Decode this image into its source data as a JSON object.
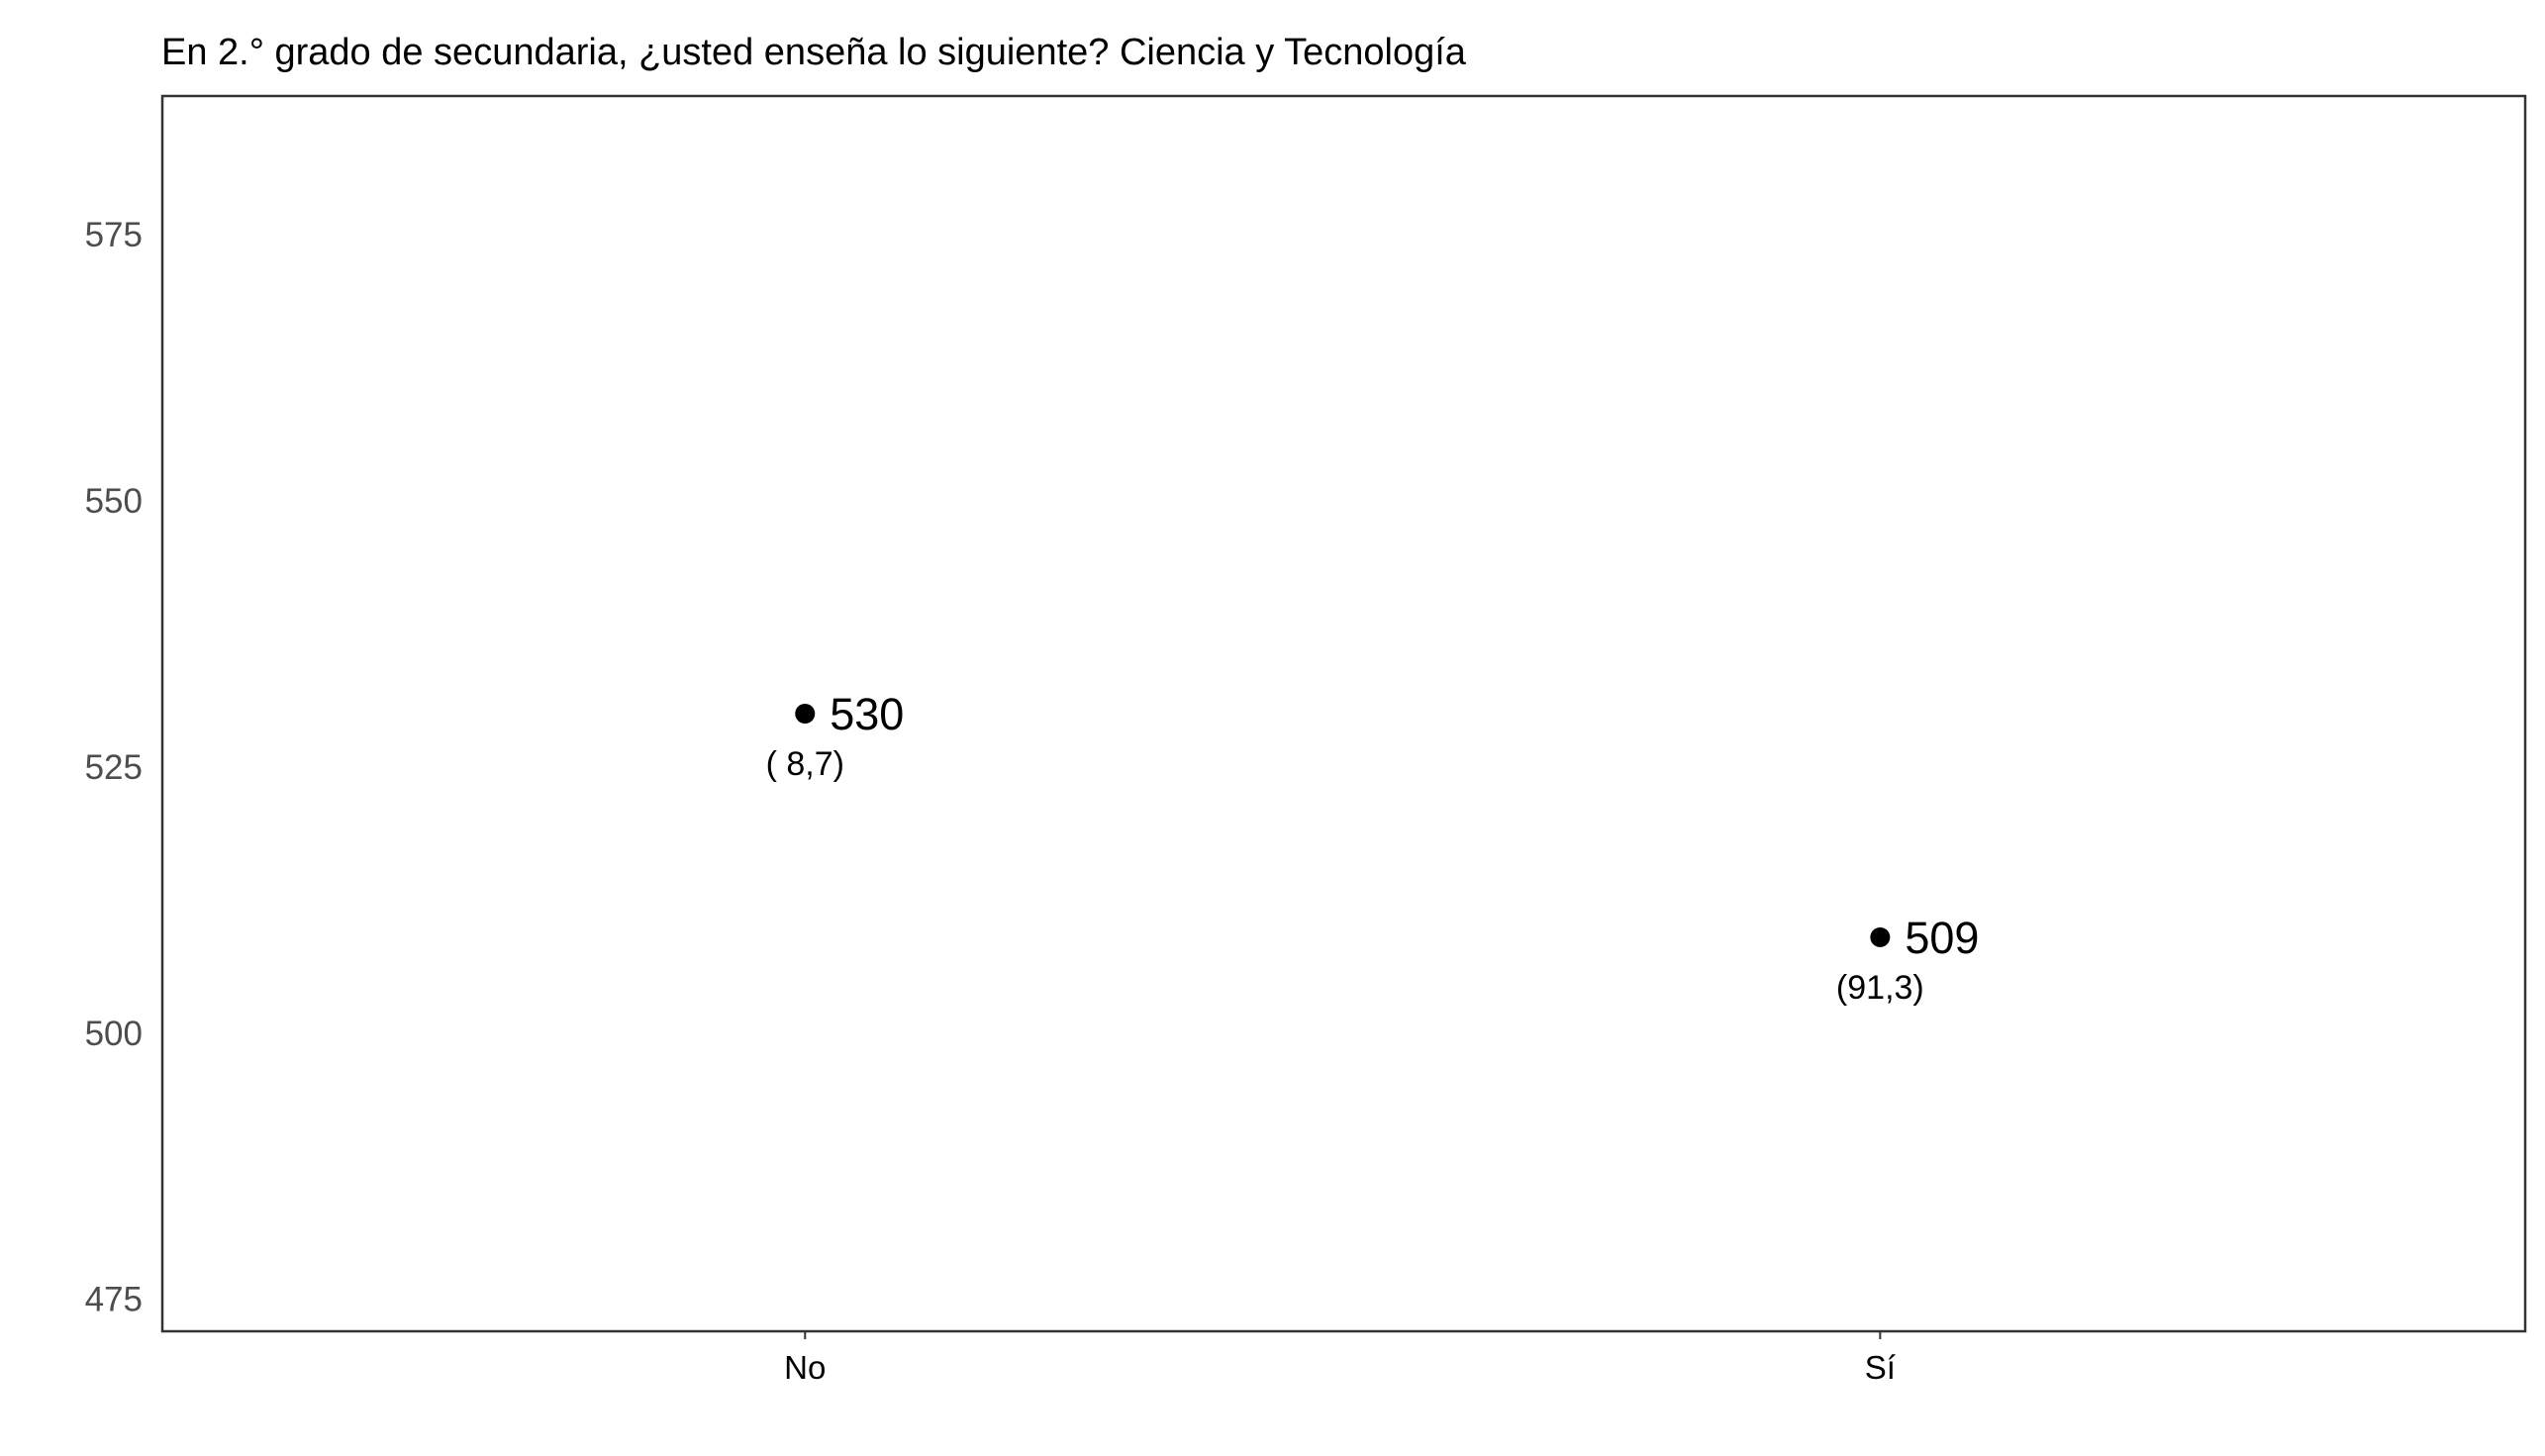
{
  "chart_data": {
    "type": "scatter",
    "title": "En 2.° grado de secundaria, ¿usted enseña lo siguiente? Ciencia y Tecnología",
    "xlabel": "",
    "ylabel": "",
    "categories": [
      "No",
      "Sí"
    ],
    "values": [
      530,
      509
    ],
    "percent_labels": [
      "( 8,7)",
      "(91,3)"
    ],
    "ylim": [
      472,
      588
    ],
    "yticks": [
      475,
      500,
      525,
      550,
      575
    ],
    "grid": false,
    "legend": "none",
    "point_color": "#000000"
  }
}
